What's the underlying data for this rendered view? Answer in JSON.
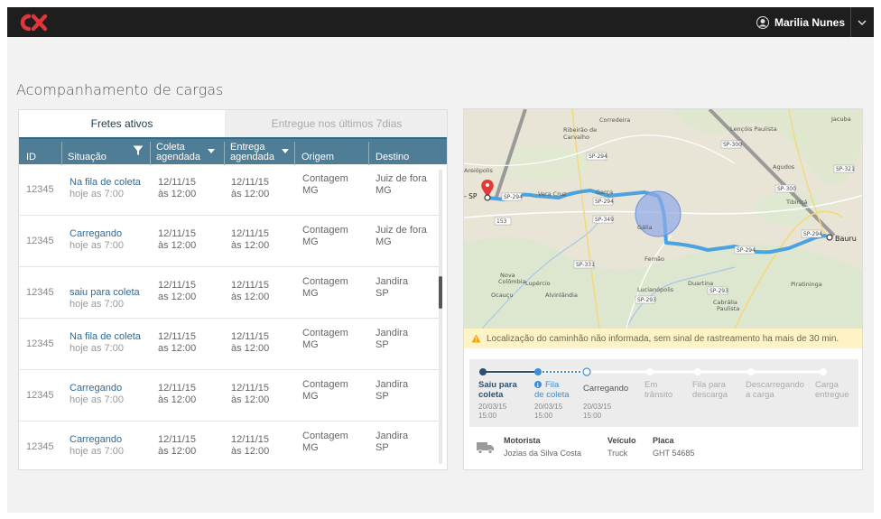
{
  "header": {
    "logo_text": "CX",
    "user_name": "Marilia Nunes"
  },
  "page_title": "Acompanhamento de cargas",
  "tabs": [
    {
      "label": "Fretes ativos",
      "active": true
    },
    {
      "label": "Entregue nos últimos 7dias",
      "active": false
    }
  ],
  "table": {
    "columns": [
      "ID",
      "Situação",
      "Coleta agendada",
      "Entrega agendada",
      "Origem",
      "Destino"
    ],
    "col_coleta_1": "Coleta",
    "col_coleta_2": "agendada",
    "col_entrega_1": "Entrega",
    "col_entrega_2": "agendada",
    "rows": [
      {
        "id": "12345",
        "status": "Na fila de coleta",
        "status_sub": "hoje as 7:00",
        "coleta_date": "12/11/15",
        "coleta_time": "às 12:00",
        "entrega_date": "12/11/15",
        "entrega_time": "às 12:00",
        "origem_city": "Contagem",
        "origem_state": "MG",
        "destino_city": "Juiz de fora",
        "destino_state": "MG"
      },
      {
        "id": "12345",
        "status": "Carregando",
        "status_sub": "hoje as 7:00",
        "coleta_date": "12/11/15",
        "coleta_time": "às 12:00",
        "entrega_date": "12/11/15",
        "entrega_time": "às 12:00",
        "origem_city": "Contagem",
        "origem_state": "MG",
        "destino_city": "Juiz de fora",
        "destino_state": "MG"
      },
      {
        "id": "12345",
        "status": "saiu para coleta",
        "status_sub": "hoje as 7:00",
        "coleta_date": "12/11/15",
        "coleta_time": "as 12:00",
        "entrega_date": "12/11/15",
        "entrega_time": "às 12:00",
        "origem_city": "Contagem",
        "origem_state": "MG",
        "destino_city": "Jandira",
        "destino_state": "SP"
      },
      {
        "id": "12345",
        "status": "Na fila de coleta",
        "status_sub": "hoje as 7:00",
        "coleta_date": "12/11/15",
        "coleta_time": "as 12:00",
        "entrega_date": "12/11/15",
        "entrega_time": "às 12:00",
        "origem_city": "Contagem",
        "origem_state": "MG",
        "destino_city": "Jandira",
        "destino_state": "SP"
      },
      {
        "id": "12345",
        "status": "Carregando",
        "status_sub": "hoje as 7:00",
        "coleta_date": "12/11/15",
        "coleta_time": "às 12:00",
        "entrega_date": "12/11/15",
        "entrega_time": "às 12:00",
        "origem_city": "Contagem",
        "origem_state": "MG",
        "destino_city": "Jandira",
        "destino_state": "SP"
      },
      {
        "id": "12345",
        "status": "Carregando",
        "status_sub": "hoje as 7:00",
        "coleta_date": "12/11/15",
        "coleta_time": "às 12:00",
        "entrega_date": "12/11/15",
        "entrega_time": "às 12:00",
        "origem_city": "Contagem",
        "origem_state": "MG",
        "destino_city": "Jandira",
        "destino_state": "SP"
      }
    ]
  },
  "map": {
    "origin_label": "- SP",
    "destination_label": "Bauru",
    "towns": [
      "Corredeira",
      "Lençóis Paulista",
      "Agudos",
      "Jacuba",
      "Ribeirão de Carvalho",
      "Areiópolis",
      "Garça",
      "Tibiriçá",
      "Gália",
      "Fernão",
      "Vera Cruz",
      "Nova Colômbia",
      "Lupércio",
      "Ocauçu",
      "Alvinlândia",
      "Duartina",
      "Lucianópolis",
      "Cabrália Paulista",
      "Piratininga"
    ],
    "roads": [
      "SP-300",
      "SP-264",
      "SP-321",
      "SP-294",
      "SP-349",
      "SP-331",
      "SP-293",
      "SP-153"
    ],
    "road_color": "#4aa3e0"
  },
  "alert_text": "Localização do caminhão não informada, sem sinal de rastreamento ha mais de 30 min.",
  "tracking": {
    "progress_steps_completed": 2,
    "steps": [
      {
        "label1": "Saiu para",
        "label2": "coleta",
        "date": "20/03/15",
        "time": "15:00",
        "state": "done"
      },
      {
        "label1": "Fila",
        "label2": "de coleta",
        "date": "20/03/15",
        "time": "15:00",
        "state": "current"
      },
      {
        "label1": "Carregando",
        "label2": "",
        "date": "20/03/15",
        "time": "15:00",
        "state": "next"
      },
      {
        "label1": "Em",
        "label2": "trânsito",
        "date": "",
        "time": "",
        "state": "pending"
      },
      {
        "label1": "Fila para",
        "label2": "descarga",
        "date": "",
        "time": "",
        "state": "pending"
      },
      {
        "label1": "Descarregando",
        "label2": "a carga",
        "date": "",
        "time": "",
        "state": "pending"
      },
      {
        "label1": "Carga",
        "label2": "entregue",
        "date": "",
        "time": "",
        "state": "pending"
      }
    ]
  },
  "driver": {
    "motorista_label": "Motorista",
    "motorista_value": "Jozias da Silva Costa",
    "veiculo_label": "Veículo",
    "veiculo_value": "Truck",
    "placa_label": "Placa",
    "placa_value": "GHT 54685"
  },
  "colors": {
    "accent": "#2f6a9b",
    "header_bg": "#4f7d95",
    "logo_red": "#e0353a",
    "route_blue": "#4aa3e0",
    "step_active": "#2f6a9b"
  }
}
